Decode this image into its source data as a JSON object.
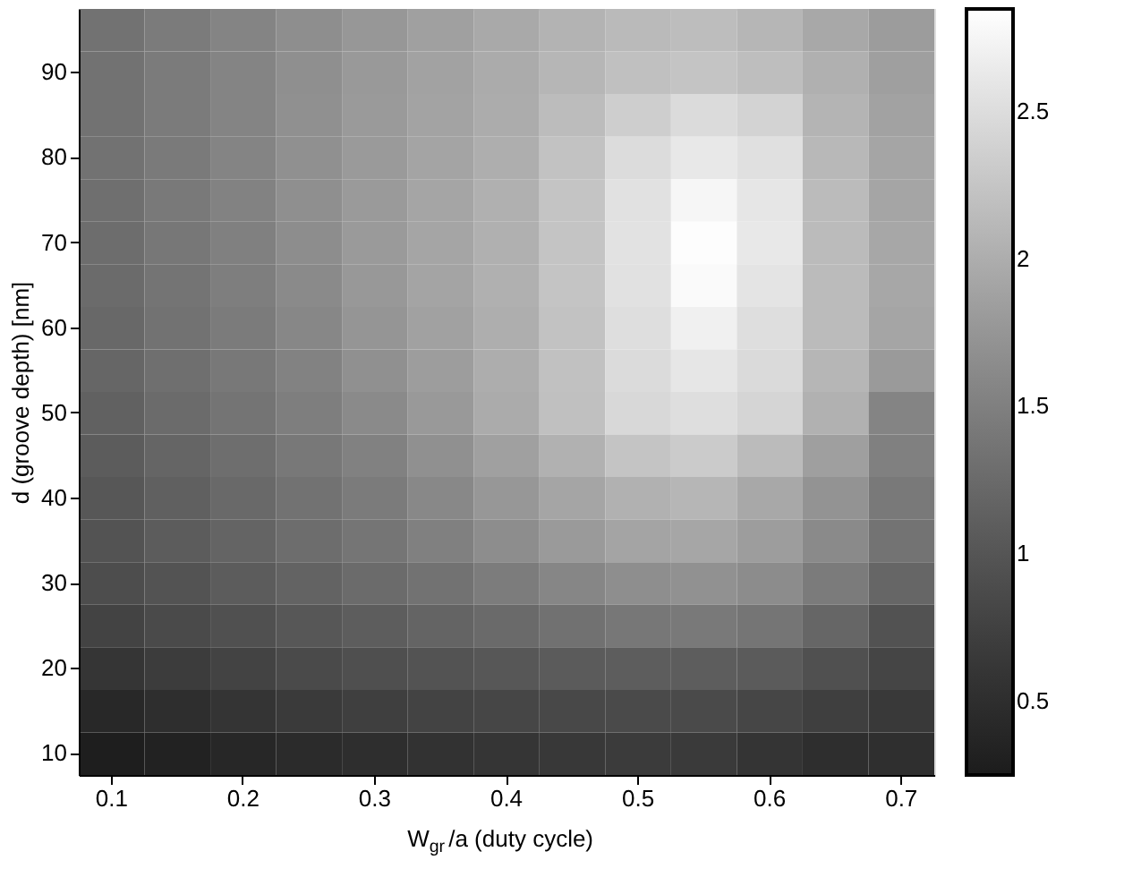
{
  "chart_data": {
    "type": "heatmap",
    "xlabel": "W$_{gr}$/a (duty cycle)",
    "ylabel": "d (groove depth) [nm]",
    "categories": [
      "0.1",
      null,
      "0.2",
      null,
      "0.3",
      null,
      "0.4",
      null,
      "0.5",
      null,
      "0.6",
      null,
      "0.7"
    ],
    "y_categories": [
      null,
      "90",
      null,
      "80",
      null,
      "70",
      null,
      "60",
      null,
      "50",
      null,
      "40",
      null,
      "30",
      null,
      "20",
      null,
      "10"
    ],
    "cells": [
      [
        1.35,
        1.45,
        1.55,
        1.66,
        1.76,
        1.86,
        1.96,
        2.07,
        2.14,
        2.17,
        2.1,
        1.95,
        1.82
      ],
      [
        1.35,
        1.45,
        1.55,
        1.67,
        1.78,
        1.88,
        1.98,
        2.1,
        2.2,
        2.25,
        2.18,
        2.03,
        1.85
      ],
      [
        1.35,
        1.45,
        1.55,
        1.68,
        1.79,
        1.89,
        1.99,
        2.16,
        2.35,
        2.48,
        2.4,
        2.08,
        1.88
      ],
      [
        1.34,
        1.44,
        1.55,
        1.68,
        1.8,
        1.9,
        2.01,
        2.22,
        2.5,
        2.62,
        2.54,
        2.12,
        1.91
      ],
      [
        1.31,
        1.42,
        1.53,
        1.67,
        1.8,
        1.92,
        2.03,
        2.25,
        2.55,
        2.76,
        2.6,
        2.15,
        1.92
      ],
      [
        1.29,
        1.4,
        1.51,
        1.65,
        1.79,
        1.91,
        2.03,
        2.25,
        2.56,
        2.83,
        2.62,
        2.15,
        1.94
      ],
      [
        1.26,
        1.37,
        1.48,
        1.62,
        1.77,
        1.9,
        2.03,
        2.25,
        2.55,
        2.8,
        2.58,
        2.15,
        1.94
      ],
      [
        1.23,
        1.34,
        1.45,
        1.58,
        1.74,
        1.87,
        2.01,
        2.23,
        2.52,
        2.7,
        2.52,
        2.15,
        1.91
      ],
      [
        1.2,
        1.31,
        1.41,
        1.53,
        1.68,
        1.83,
        2.0,
        2.21,
        2.48,
        2.6,
        2.47,
        2.1,
        1.8
      ],
      [
        1.15,
        1.26,
        1.37,
        1.48,
        1.62,
        1.78,
        1.98,
        2.2,
        2.45,
        2.52,
        2.42,
        2.05,
        1.55
      ],
      [
        1.09,
        1.19,
        1.3,
        1.41,
        1.52,
        1.68,
        1.86,
        2.05,
        2.25,
        2.32,
        2.15,
        1.85,
        1.5
      ],
      [
        1.03,
        1.13,
        1.24,
        1.35,
        1.45,
        1.6,
        1.76,
        1.92,
        2.05,
        2.1,
        1.95,
        1.72,
        1.42
      ],
      [
        0.98,
        1.08,
        1.18,
        1.29,
        1.38,
        1.5,
        1.65,
        1.8,
        1.9,
        1.93,
        1.83,
        1.62,
        1.36
      ],
      [
        0.9,
        0.98,
        1.08,
        1.17,
        1.26,
        1.35,
        1.46,
        1.57,
        1.66,
        1.7,
        1.64,
        1.45,
        1.2
      ],
      [
        0.78,
        0.86,
        0.94,
        1.03,
        1.1,
        1.18,
        1.25,
        1.33,
        1.4,
        1.42,
        1.38,
        1.2,
        0.96
      ],
      [
        0.6,
        0.69,
        0.78,
        0.86,
        0.93,
        0.98,
        1.03,
        1.07,
        1.1,
        1.1,
        1.07,
        0.94,
        0.8
      ],
      [
        0.42,
        0.5,
        0.58,
        0.66,
        0.72,
        0.77,
        0.81,
        0.84,
        0.86,
        0.86,
        0.82,
        0.72,
        0.65
      ],
      [
        0.28,
        0.34,
        0.4,
        0.46,
        0.5,
        0.55,
        0.6,
        0.64,
        0.67,
        0.66,
        0.58,
        0.5,
        0.52
      ]
    ],
    "clim": [
      0.25,
      2.85
    ],
    "cticks": [
      0.5,
      1,
      1.5,
      2,
      2.5
    ]
  }
}
